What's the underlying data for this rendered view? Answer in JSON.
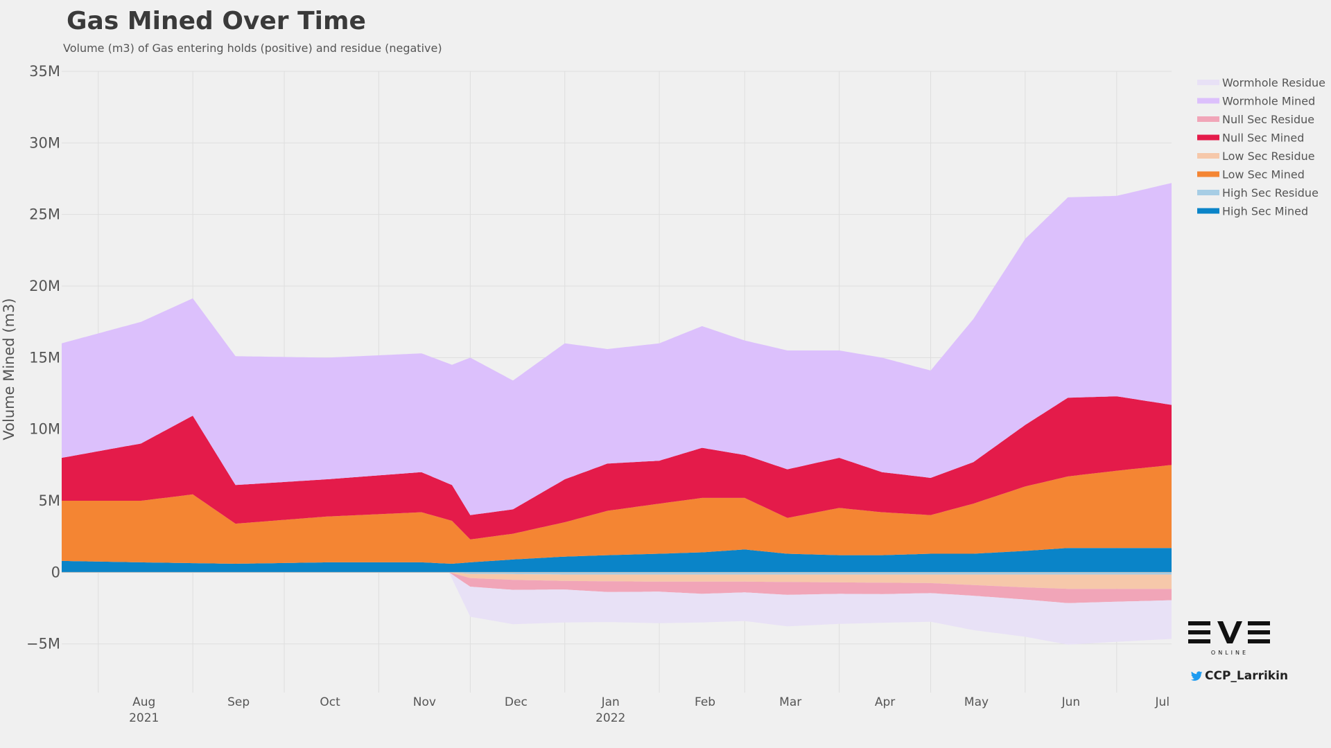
{
  "chart_data": {
    "type": "area",
    "title": "Gas Mined Over Time",
    "subtitle": "Volume (m3) of Gas entering holds (positive) and residue (negative)",
    "ylabel": "Volume Mined (m3)",
    "xlabel": "",
    "ylim": [
      -8400000,
      35000000
    ],
    "y_ticks": [
      {
        "value": 35000000,
        "label": "35M"
      },
      {
        "value": 30000000,
        "label": "30M"
      },
      {
        "value": 25000000,
        "label": "25M"
      },
      {
        "value": 20000000,
        "label": "20M"
      },
      {
        "value": 15000000,
        "label": "15M"
      },
      {
        "value": 10000000,
        "label": "10M"
      },
      {
        "value": 5000000,
        "label": "5M"
      },
      {
        "value": 0,
        "label": "0"
      },
      {
        "value": -5000000,
        "label": "−5M"
      }
    ],
    "x_range": [
      "2021-07-20",
      "2022-07-19"
    ],
    "x_ticks": [
      {
        "date": "2021-08-01",
        "label": "Aug",
        "year": "2021"
      },
      {
        "date": "2021-09-01",
        "label": "Sep",
        "year": ""
      },
      {
        "date": "2021-10-01",
        "label": "Oct",
        "year": ""
      },
      {
        "date": "2021-11-01",
        "label": "Nov",
        "year": ""
      },
      {
        "date": "2021-12-01",
        "label": "Dec",
        "year": ""
      },
      {
        "date": "2022-01-01",
        "label": "Jan",
        "year": "2022"
      },
      {
        "date": "2022-02-01",
        "label": "Feb",
        "year": ""
      },
      {
        "date": "2022-03-01",
        "label": "Mar",
        "year": ""
      },
      {
        "date": "2022-04-01",
        "label": "Apr",
        "year": ""
      },
      {
        "date": "2022-05-01",
        "label": "May",
        "year": ""
      },
      {
        "date": "2022-06-01",
        "label": "Jun",
        "year": ""
      },
      {
        "date": "2022-07-01",
        "label": "Jul",
        "year": ""
      }
    ],
    "grid": true,
    "legend_position": "top-right",
    "stacked": true,
    "series": [
      {
        "name": "High Sec Mined",
        "color": "#0a84c8",
        "kind": "mined",
        "x": [
          "2021-07-20",
          "2021-08-15",
          "2021-09-15",
          "2021-10-15",
          "2021-11-15",
          "2021-11-25",
          "2021-12-01",
          "2021-12-15",
          "2022-01-01",
          "2022-01-15",
          "2022-02-01",
          "2022-02-15",
          "2022-03-01",
          "2022-03-15",
          "2022-04-01",
          "2022-04-15",
          "2022-05-01",
          "2022-05-15",
          "2022-06-01",
          "2022-06-15",
          "2022-07-01",
          "2022-07-19"
        ],
        "values": [
          800000,
          700000,
          600000,
          700000,
          700000,
          600000,
          700000,
          900000,
          1100000,
          1200000,
          1300000,
          1400000,
          1600000,
          1300000,
          1200000,
          1200000,
          1300000,
          1300000,
          1500000,
          1700000,
          1700000,
          1700000
        ]
      },
      {
        "name": "Low Sec Mined",
        "color": "#f48533",
        "kind": "mined",
        "x": [
          "2021-07-20",
          "2021-08-15",
          "2021-09-01",
          "2021-09-15",
          "2021-10-15",
          "2021-11-15",
          "2021-11-25",
          "2021-12-01",
          "2021-12-15",
          "2022-01-01",
          "2022-01-15",
          "2022-02-01",
          "2022-02-15",
          "2022-03-01",
          "2022-03-15",
          "2022-04-01",
          "2022-04-15",
          "2022-05-01",
          "2022-05-15",
          "2022-06-01",
          "2022-06-15",
          "2022-07-01",
          "2022-07-19"
        ],
        "values": [
          4200000,
          4300000,
          4800000,
          2800000,
          3200000,
          3500000,
          3000000,
          1600000,
          1800000,
          2400000,
          3100000,
          3500000,
          3800000,
          3600000,
          2500000,
          3300000,
          3000000,
          2700000,
          3500000,
          4500000,
          5000000,
          5400000,
          5800000
        ]
      },
      {
        "name": "Null Sec Mined",
        "color": "#e41b4a",
        "kind": "mined",
        "x": [
          "2021-07-20",
          "2021-08-15",
          "2021-09-01",
          "2021-09-15",
          "2021-10-15",
          "2021-11-15",
          "2021-11-25",
          "2021-12-01",
          "2021-12-15",
          "2022-01-01",
          "2022-01-15",
          "2022-02-01",
          "2022-02-15",
          "2022-03-01",
          "2022-03-15",
          "2022-04-01",
          "2022-04-15",
          "2022-05-01",
          "2022-05-15",
          "2022-06-01",
          "2022-06-15",
          "2022-07-01",
          "2022-07-19"
        ],
        "values": [
          3000000,
          4000000,
          5500000,
          2700000,
          2600000,
          2800000,
          2500000,
          1700000,
          1700000,
          3000000,
          3300000,
          3000000,
          3500000,
          3000000,
          3400000,
          3500000,
          2800000,
          2600000,
          2900000,
          4300000,
          5500000,
          5200000,
          4200000
        ]
      },
      {
        "name": "Wormhole Mined",
        "color": "#dcc0fc",
        "kind": "mined",
        "x": [
          "2021-07-20",
          "2021-08-15",
          "2021-09-01",
          "2021-09-15",
          "2021-10-15",
          "2021-11-15",
          "2021-11-25",
          "2021-12-01",
          "2021-12-15",
          "2022-01-01",
          "2022-01-15",
          "2022-02-01",
          "2022-02-15",
          "2022-03-01",
          "2022-03-15",
          "2022-04-01",
          "2022-04-15",
          "2022-05-01",
          "2022-05-15",
          "2022-06-01",
          "2022-06-15",
          "2022-07-01",
          "2022-07-19"
        ],
        "values": [
          8000000,
          8500000,
          8200000,
          9000000,
          8500000,
          8300000,
          8400000,
          11000000,
          9000000,
          9500000,
          8000000,
          8200000,
          8500000,
          8000000,
          8300000,
          7500000,
          8000000,
          7500000,
          10000000,
          13000000,
          14000000,
          14000000,
          15500000
        ]
      },
      {
        "name": "High Sec Residue",
        "color": "#a6cde5",
        "kind": "residue",
        "x": [
          "2021-11-24",
          "2021-12-01",
          "2022-01-01",
          "2022-02-01",
          "2022-03-01",
          "2022-04-01",
          "2022-05-01",
          "2022-06-01",
          "2022-07-01",
          "2022-07-19"
        ],
        "values": [
          0,
          -100000,
          -150000,
          -150000,
          -150000,
          -150000,
          -150000,
          -150000,
          -150000,
          -150000
        ]
      },
      {
        "name": "Low Sec Residue",
        "color": "#f6c8aa",
        "kind": "residue",
        "x": [
          "2021-11-24",
          "2021-12-01",
          "2021-12-15",
          "2022-01-01",
          "2022-02-01",
          "2022-03-01",
          "2022-04-01",
          "2022-05-01",
          "2022-06-01",
          "2022-06-15",
          "2022-07-01",
          "2022-07-19"
        ],
        "values": [
          0,
          -300000,
          -400000,
          -450000,
          -500000,
          -500000,
          -550000,
          -600000,
          -900000,
          -1000000,
          -1000000,
          -1000000
        ]
      },
      {
        "name": "Null Sec Residue",
        "color": "#f1a5b8",
        "kind": "residue",
        "x": [
          "2021-11-24",
          "2021-12-01",
          "2021-12-15",
          "2022-01-01",
          "2022-01-15",
          "2022-02-01",
          "2022-02-15",
          "2022-03-01",
          "2022-03-15",
          "2022-04-01",
          "2022-04-15",
          "2022-05-01",
          "2022-05-15",
          "2022-06-01",
          "2022-06-15",
          "2022-07-01",
          "2022-07-19"
        ],
        "values": [
          0,
          -600000,
          -700000,
          -600000,
          -750000,
          -700000,
          -850000,
          -750000,
          -900000,
          -800000,
          -800000,
          -700000,
          -750000,
          -850000,
          -1000000,
          -900000,
          -800000
        ]
      },
      {
        "name": "Wormhole Residue",
        "color": "#e8e1f6",
        "kind": "residue",
        "x": [
          "2021-11-24",
          "2021-12-01",
          "2021-12-15",
          "2022-01-01",
          "2022-01-15",
          "2022-02-01",
          "2022-02-15",
          "2022-03-01",
          "2022-03-15",
          "2022-04-01",
          "2022-04-15",
          "2022-05-01",
          "2022-05-15",
          "2022-06-01",
          "2022-06-15",
          "2022-07-01",
          "2022-07-19"
        ],
        "values": [
          0,
          -2100000,
          -2400000,
          -2300000,
          -2100000,
          -2200000,
          -2000000,
          -2000000,
          -2200000,
          -2100000,
          -2000000,
          -2000000,
          -2400000,
          -2600000,
          -2900000,
          -2800000,
          -2700000
        ]
      }
    ],
    "legend_order": [
      "Wormhole Residue",
      "Wormhole Mined",
      "Null Sec Residue",
      "Null Sec Mined",
      "Low Sec Residue",
      "Low Sec Mined",
      "High Sec Residue",
      "High Sec Mined"
    ]
  },
  "logo": {
    "text": "EVE",
    "subtext": "ONLINE"
  },
  "twitter_handle": "CCP_Larrikin",
  "icons": {
    "twitter": "twitter-bird-icon",
    "logo": "eve-online-logo"
  }
}
